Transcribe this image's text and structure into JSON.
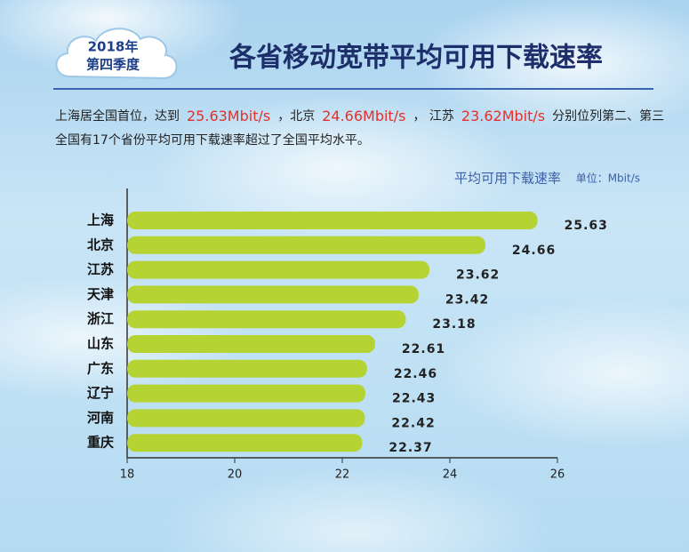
{
  "header": {
    "year": "2018年",
    "quarter": "第四季度",
    "title": "各省移动宽带平均可用下载速率"
  },
  "description": {
    "line1": [
      {
        "text": "上海居全国首位，达到",
        "color": "#222222"
      },
      {
        "text": "25.63Mbit/s",
        "color": "#e2312c"
      },
      {
        "text": "，北京",
        "color": "#222222"
      },
      {
        "text": "24.66Mbit/s",
        "color": "#e2312c"
      },
      {
        "text": "， 江苏",
        "color": "#222222"
      },
      {
        "text": "23.62Mbit/s",
        "color": "#e2312c"
      },
      {
        "text": "分别位列第二、第三",
        "color": "#222222"
      }
    ],
    "line2": "全国有17个省份平均可用下载速率超过了全国平均水平。"
  },
  "chart_data": {
    "type": "bar",
    "orientation": "horizontal",
    "title": "平均可用下载速率",
    "unit_label": "单位：Mbit/s",
    "categories": [
      "上海",
      "北京",
      "江苏",
      "天津",
      "浙江",
      "山东",
      "广东",
      "辽宁",
      "河南",
      "重庆"
    ],
    "values": [
      25.63,
      24.66,
      23.62,
      23.42,
      23.18,
      22.61,
      22.46,
      22.43,
      22.42,
      22.37
    ],
    "color": "#b6d334",
    "xlim": [
      18,
      26
    ],
    "xticks": [
      18,
      20,
      22,
      24,
      26
    ]
  }
}
